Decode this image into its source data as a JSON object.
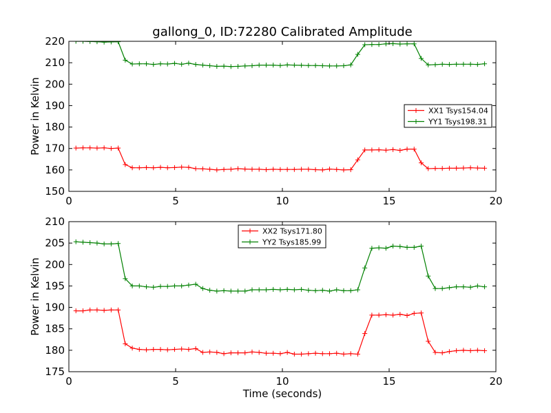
{
  "title": "gallong_0, ID:72280 Calibrated Amplitude",
  "chart_data": [
    {
      "type": "line",
      "title": "gallong_0, ID:72280 Calibrated Amplitude",
      "xlabel": "",
      "ylabel": "Power in Kelvin",
      "xlim": [
        0,
        20
      ],
      "ylim": [
        150,
        220
      ],
      "xticks": [
        "0",
        "5",
        "10",
        "15",
        "20"
      ],
      "yticks": [
        "150",
        "160",
        "170",
        "180",
        "190",
        "200",
        "210",
        "220"
      ],
      "grid": false,
      "legend_position": "center-right",
      "x": [
        0.33,
        0.66,
        0.99,
        1.32,
        1.65,
        1.98,
        2.31,
        2.64,
        2.97,
        3.3,
        3.63,
        3.96,
        4.29,
        4.62,
        4.95,
        5.28,
        5.61,
        5.94,
        6.27,
        6.6,
        6.93,
        7.26,
        7.59,
        7.92,
        8.25,
        8.58,
        8.91,
        9.24,
        9.57,
        9.9,
        10.23,
        10.56,
        10.89,
        11.22,
        11.55,
        11.88,
        12.21,
        12.54,
        12.87,
        13.2,
        13.53,
        13.86,
        14.19,
        14.52,
        14.85,
        15.18,
        15.51,
        15.84,
        16.17,
        16.5,
        16.83,
        17.16,
        17.49,
        17.82,
        18.15,
        18.48,
        18.81,
        19.14,
        19.47
      ],
      "series": [
        {
          "name": "XX1 Tsys154.04",
          "color": "#ff0000",
          "values": [
            170.2,
            170.3,
            170.3,
            170.2,
            170.3,
            170.0,
            170.2,
            162.5,
            161.0,
            161.0,
            161.1,
            161.0,
            161.2,
            161.0,
            161.1,
            161.3,
            161.2,
            160.6,
            160.5,
            160.3,
            160.0,
            160.2,
            160.3,
            160.6,
            160.4,
            160.3,
            160.3,
            160.1,
            160.3,
            160.2,
            160.2,
            160.2,
            160.3,
            160.3,
            160.1,
            160.0,
            160.4,
            160.2,
            160.0,
            160.1,
            164.7,
            169.3,
            169.3,
            169.4,
            169.2,
            169.5,
            169.1,
            169.7,
            169.7,
            163.3,
            160.6,
            160.7,
            160.7,
            160.8,
            160.8,
            160.9,
            161.0,
            160.9,
            160.8
          ]
        },
        {
          "name": "YY1 Tsys198.31",
          "color": "#008000",
          "values": [
            220.0,
            220.0,
            219.9,
            219.8,
            219.6,
            219.7,
            219.8,
            211.2,
            209.4,
            209.5,
            209.5,
            209.2,
            209.5,
            209.4,
            209.7,
            209.3,
            209.8,
            209.2,
            208.9,
            208.6,
            208.3,
            208.4,
            208.2,
            208.3,
            208.5,
            208.6,
            208.9,
            208.9,
            208.9,
            208.7,
            209.0,
            208.9,
            208.8,
            208.7,
            208.7,
            208.6,
            208.5,
            208.5,
            208.6,
            209.0,
            213.9,
            218.4,
            218.5,
            218.5,
            218.8,
            218.9,
            218.7,
            218.8,
            218.8,
            212.0,
            209.0,
            209.1,
            209.3,
            209.2,
            209.3,
            209.3,
            209.3,
            209.2,
            209.5
          ]
        }
      ]
    },
    {
      "type": "line",
      "title": "",
      "xlabel": "Time (seconds)",
      "ylabel": "Power in Kelvin",
      "xlim": [
        0,
        20
      ],
      "ylim": [
        175,
        210
      ],
      "xticks": [
        "0",
        "5",
        "10",
        "15",
        "20"
      ],
      "yticks": [
        "175",
        "180",
        "185",
        "190",
        "195",
        "200",
        "205",
        "210"
      ],
      "grid": false,
      "legend_position": "upper-center",
      "x": [
        0.33,
        0.66,
        0.99,
        1.32,
        1.65,
        1.98,
        2.31,
        2.64,
        2.97,
        3.3,
        3.63,
        3.96,
        4.29,
        4.62,
        4.95,
        5.28,
        5.61,
        5.94,
        6.27,
        6.6,
        6.93,
        7.26,
        7.59,
        7.92,
        8.25,
        8.58,
        8.91,
        9.24,
        9.57,
        9.9,
        10.23,
        10.56,
        10.89,
        11.22,
        11.55,
        11.88,
        12.21,
        12.54,
        12.87,
        13.2,
        13.53,
        13.86,
        14.19,
        14.52,
        14.85,
        15.18,
        15.51,
        15.84,
        16.17,
        16.5,
        16.83,
        17.16,
        17.49,
        17.82,
        18.15,
        18.48,
        18.81,
        19.14,
        19.47
      ],
      "series": [
        {
          "name": "XX2 Tsys171.80",
          "color": "#ff0000",
          "values": [
            189.2,
            189.2,
            189.4,
            189.4,
            189.3,
            189.4,
            189.4,
            181.5,
            180.5,
            180.2,
            180.1,
            180.2,
            180.2,
            180.1,
            180.2,
            180.3,
            180.2,
            180.4,
            179.5,
            179.6,
            179.5,
            179.2,
            179.4,
            179.4,
            179.4,
            179.6,
            179.5,
            179.3,
            179.3,
            179.2,
            179.5,
            179.1,
            179.1,
            179.2,
            179.3,
            179.2,
            179.2,
            179.3,
            179.1,
            179.2,
            179.1,
            183.9,
            188.2,
            188.2,
            188.3,
            188.2,
            188.4,
            188.1,
            188.6,
            188.7,
            182.1,
            179.5,
            179.4,
            179.7,
            179.9,
            180.0,
            179.9,
            180.0,
            179.9
          ]
        },
        {
          "name": "YY2 Tsys185.99",
          "color": "#008000",
          "values": [
            205.3,
            205.2,
            205.1,
            205.0,
            204.8,
            204.8,
            204.9,
            196.7,
            195.0,
            195.0,
            194.8,
            194.7,
            194.9,
            194.9,
            195.0,
            195.0,
            195.2,
            195.4,
            194.4,
            194.0,
            193.8,
            193.9,
            193.8,
            193.8,
            193.8,
            194.1,
            194.1,
            194.1,
            194.2,
            194.1,
            194.2,
            194.1,
            194.2,
            194.0,
            193.9,
            194.0,
            193.8,
            194.1,
            193.9,
            193.9,
            194.1,
            199.2,
            203.8,
            203.9,
            203.8,
            204.3,
            204.2,
            204.0,
            204.0,
            204.3,
            197.3,
            194.4,
            194.4,
            194.6,
            194.8,
            194.8,
            194.7,
            195.0,
            194.8
          ]
        }
      ]
    }
  ]
}
